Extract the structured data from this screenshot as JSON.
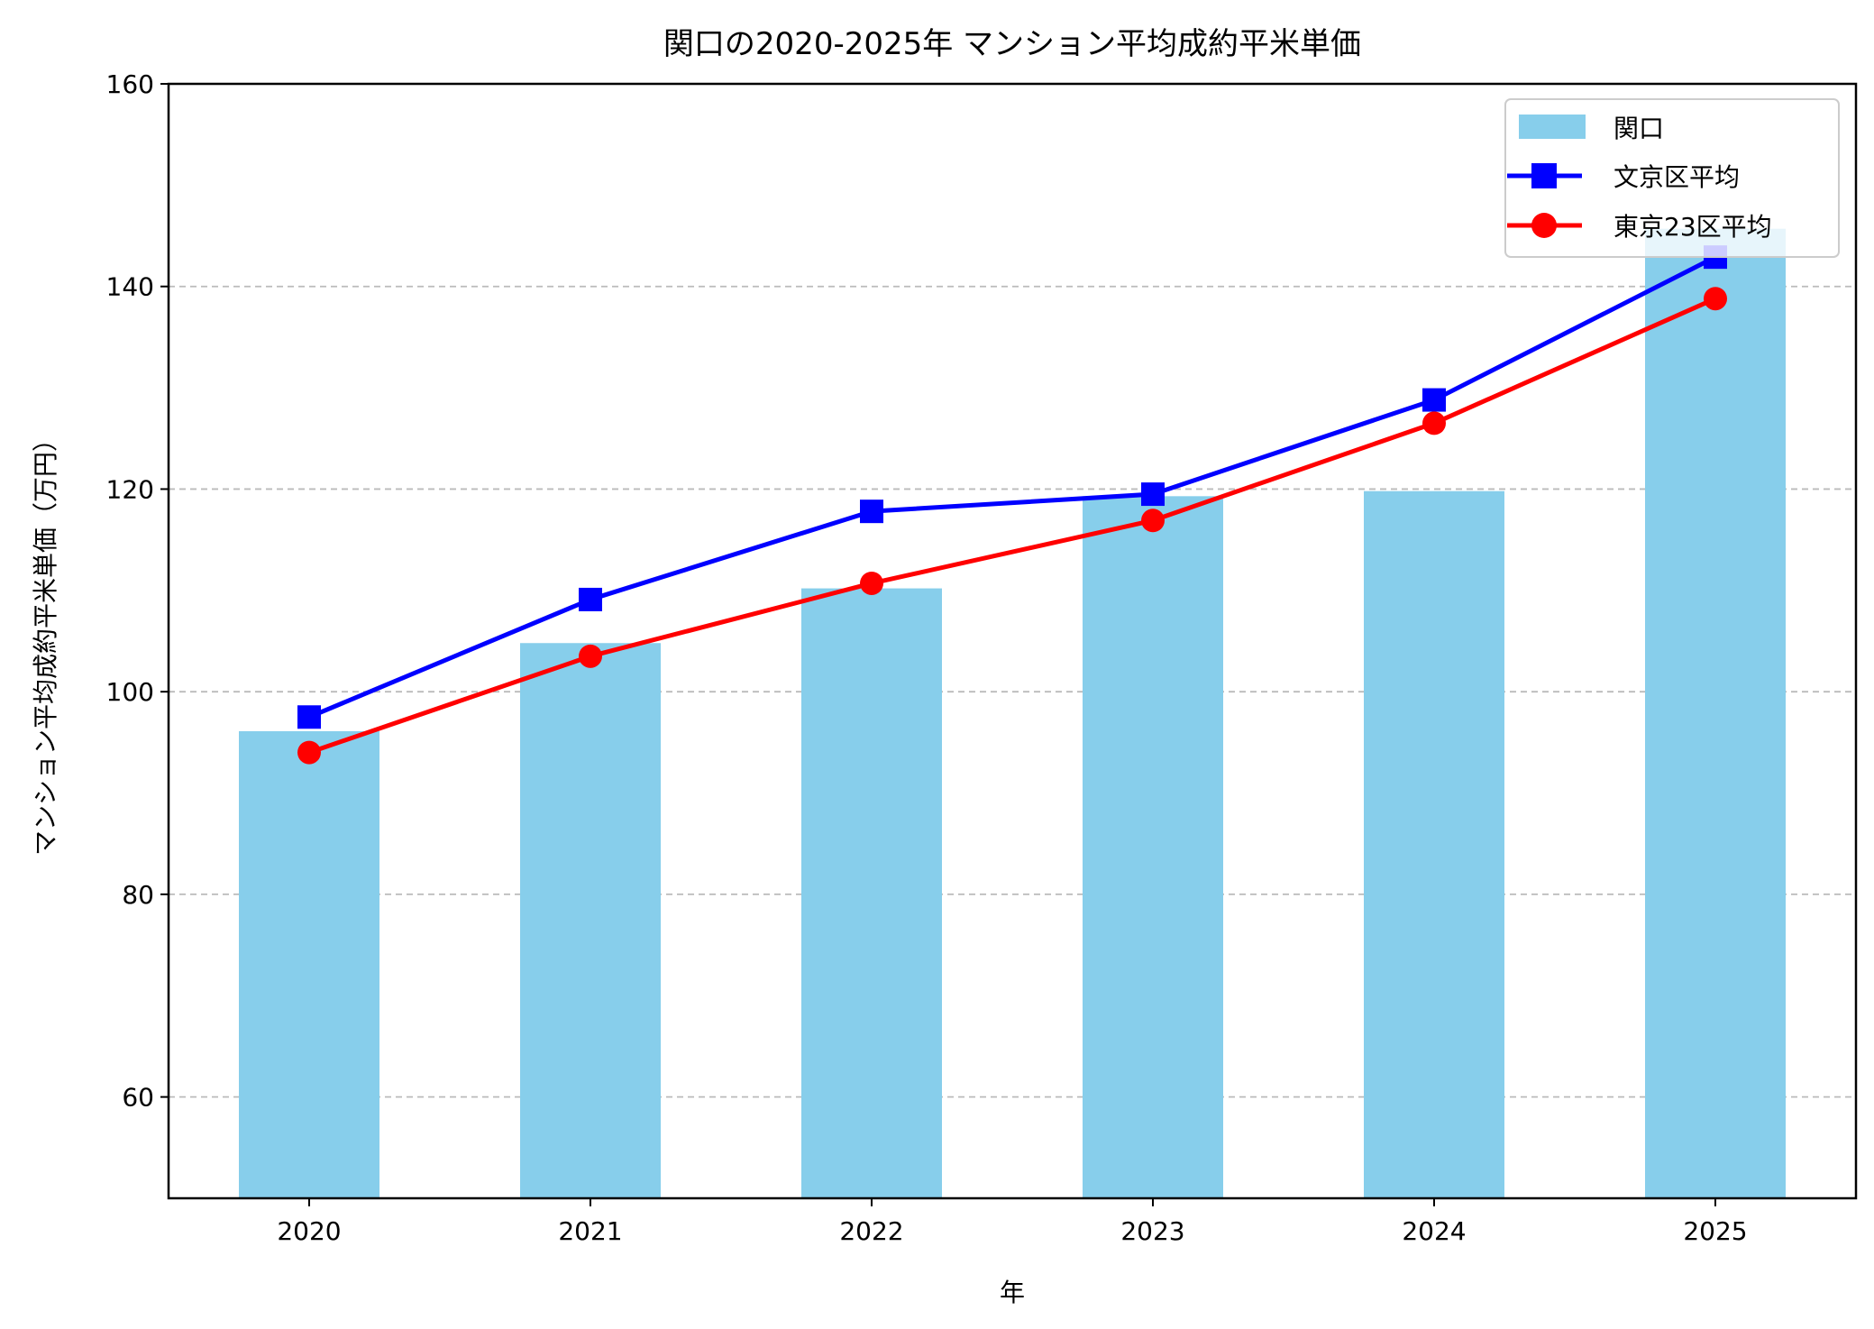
{
  "chart_data": {
    "type": "bar+line",
    "title": "関口の2020-2025年 マンション平均成約平米単価",
    "xlabel": "年",
    "ylabel": "マンション平均成約平米単価（万円）",
    "categories": [
      "2020",
      "2021",
      "2022",
      "2023",
      "2024",
      "2025"
    ],
    "ylim": [
      50,
      160
    ],
    "yticks": [
      60,
      80,
      100,
      120,
      140,
      160
    ],
    "grid": "y-dashed",
    "legend_position": "top-right",
    "series": [
      {
        "name": "関口",
        "kind": "bar",
        "color": "#87CEEB",
        "values": [
          96.1,
          104.8,
          110.2,
          119.3,
          119.8,
          145.7
        ]
      },
      {
        "name": "文京区平均",
        "kind": "line",
        "marker": "square",
        "color": "#0000FF",
        "values": [
          97.5,
          109.1,
          117.8,
          119.5,
          128.8,
          142.9
        ]
      },
      {
        "name": "東京23区平均",
        "kind": "line",
        "marker": "circle",
        "color": "#FF0000",
        "values": [
          94.0,
          103.5,
          110.7,
          116.9,
          126.5,
          138.8
        ]
      }
    ]
  }
}
